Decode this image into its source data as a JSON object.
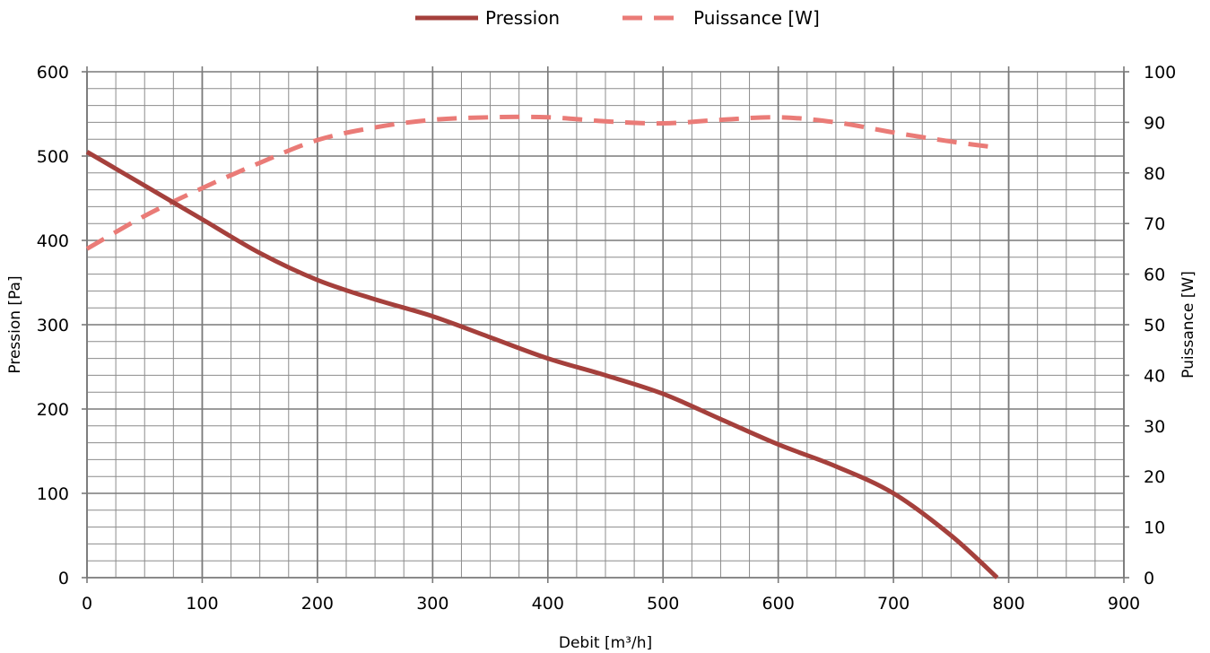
{
  "chart_data": {
    "type": "line",
    "title": "",
    "xlabel": "Debit [m³/h]",
    "ylabel": "Pression [Pa]",
    "y2label": "Puissance [W]",
    "xlim": [
      0,
      900
    ],
    "ylim": [
      0,
      600
    ],
    "y2lim": [
      0,
      100
    ],
    "x_ticks": [
      "0",
      "100",
      "200",
      "300",
      "400",
      "500",
      "600",
      "700",
      "800",
      "900"
    ],
    "y_ticks": [
      "0",
      "100",
      "200",
      "300",
      "400",
      "500",
      "600"
    ],
    "y2_ticks": [
      "0",
      "10",
      "20",
      "30",
      "40",
      "50",
      "60",
      "70",
      "80",
      "90",
      "100"
    ],
    "grid": true,
    "legend_position": "top-center",
    "series": [
      {
        "name": "Pression",
        "axis": "left",
        "style": "solid",
        "color": "#a5403c",
        "x": [
          0,
          50,
          100,
          150,
          200,
          250,
          300,
          350,
          400,
          450,
          500,
          550,
          600,
          650,
          700,
          750,
          790
        ],
        "y": [
          505,
          465,
          425,
          385,
          353,
          330,
          310,
          285,
          260,
          240,
          218,
          188,
          158,
          132,
          100,
          50,
          0
        ]
      },
      {
        "name": "Puissance [W]",
        "axis": "right",
        "style": "dashed",
        "color": "#ea7b77",
        "x": [
          0,
          50,
          100,
          150,
          200,
          250,
          300,
          350,
          400,
          450,
          500,
          550,
          600,
          650,
          700,
          750,
          790
        ],
        "y": [
          65,
          71.5,
          77,
          82,
          86.5,
          89,
          90.5,
          91,
          91,
          90.2,
          89.8,
          90.5,
          91,
          90,
          88,
          86.2,
          85
        ]
      }
    ]
  }
}
